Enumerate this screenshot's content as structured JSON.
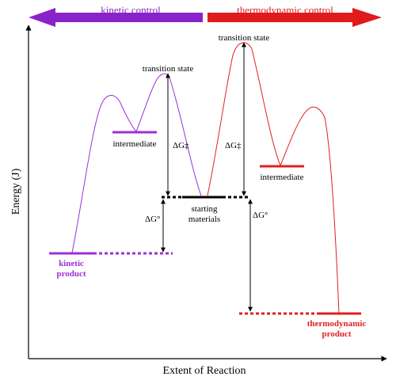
{
  "banner": {
    "kinetic_label": "kinetic control",
    "thermo_label": "thermodynamic control",
    "kinetic_color": "#8a22c9",
    "thermo_color": "#e01b1b"
  },
  "axes": {
    "y_label": "Energy (J)",
    "x_label": "Extent of Reaction"
  },
  "labels": {
    "transition_state_left": "transition state",
    "transition_state_right": "transition state",
    "intermediate_left": "intermediate",
    "intermediate_right": "intermediate",
    "starting_line1": "starting",
    "starting_line2": "materials",
    "dg_ts_left": "ΔG‡",
    "dg_ts_right": "ΔG‡",
    "dg0_left": "ΔG°",
    "dg0_right": "ΔG°",
    "kinetic_line1": "kinetic",
    "kinetic_line2": "product",
    "thermo_line1": "thermodynamic",
    "thermo_line2": "product"
  },
  "colors": {
    "kinetic": "#9b30d9",
    "thermo": "#e02020",
    "axis": "#000000"
  }
}
